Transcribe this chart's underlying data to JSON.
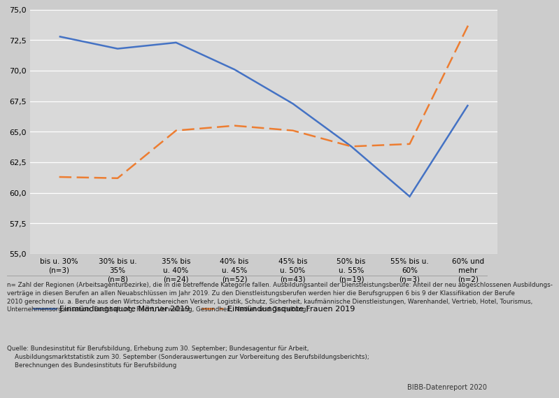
{
  "x_labels": [
    "bis u. 30%\n(n=3)",
    "30% bis u.\n35%\n(n=8)",
    "35% bis\nu. 40%\n(n=24)",
    "40% bis\nu. 45%\n(n=52)",
    "45% bis\nu. 50%\n(n=43)",
    "50% bis\nu. 55%\n(n=19)",
    "55% bis u.\n60%\n(n=3)",
    "60% und\nmehr\n(n=2)"
  ],
  "maenner": [
    72.8,
    71.8,
    72.3,
    70.1,
    67.3,
    63.8,
    59.7,
    67.2
  ],
  "frauen": [
    61.3,
    61.2,
    65.1,
    65.5,
    65.1,
    63.8,
    64.0,
    73.7
  ],
  "maenner_color": "#4472C4",
  "frauen_color": "#ED7D31",
  "bg_color": "#CCCCCC",
  "plot_bg_color": "#D9D9D9",
  "ylim": [
    55.0,
    75.0
  ],
  "yticks": [
    55.0,
    57.5,
    60.0,
    62.5,
    65.0,
    67.5,
    70.0,
    72.5,
    75.0
  ],
  "legend_maenner": "Einmündungsquote Männer 2019",
  "legend_frauen": "Einmündungsquote Frauen 2019",
  "footnote1_line1": "n= Zahl der Regionen (Arbeitsagenturbezirke), die in die betreffende Kategorie fallen. Ausbildungsanteil der Dienstleistungsberufe: Anteil der neu abgeschlossenen Ausbildungs-",
  "footnote1_line2": "verträge in diesen Berufen an allen Neuabschlüssen im Jahr 2019. Zu den Dienstleistungsberufen werden hier die Berufsgruppen 6 bis 9 der Klassifikation der Berufe",
  "footnote1_line3": "2010 gerechnet (u. a. Berufe aus den Wirtschaftsbereichen Verkehr, Logistik, Schutz, Sicherheit, kaufmännische Dienstleistungen, Warenhandel, Vertrieb, Hotel, Tourismus,",
  "footnote1_line4": "Unternehmensorganisation, Buchhaltung, Recht, Verwaltung, Gesundheit, Medien und Gestaltung).",
  "footnote2_line1": "Quelle: Bundesinstitut für Berufsbildung, Erhebung zum 30. September; Bundesagentur für Arbeit,",
  "footnote2_line2": "    Ausbildungsmarktstatistik zum 30. September (Sonderauswertungen zur Vorbereitung des Berufsbildungsberichts);",
  "footnote2_line3": "    Berechnungen des Bundesinstituts für Berufsbildung",
  "bibb_label": "BIBB-Datenreport 2020"
}
